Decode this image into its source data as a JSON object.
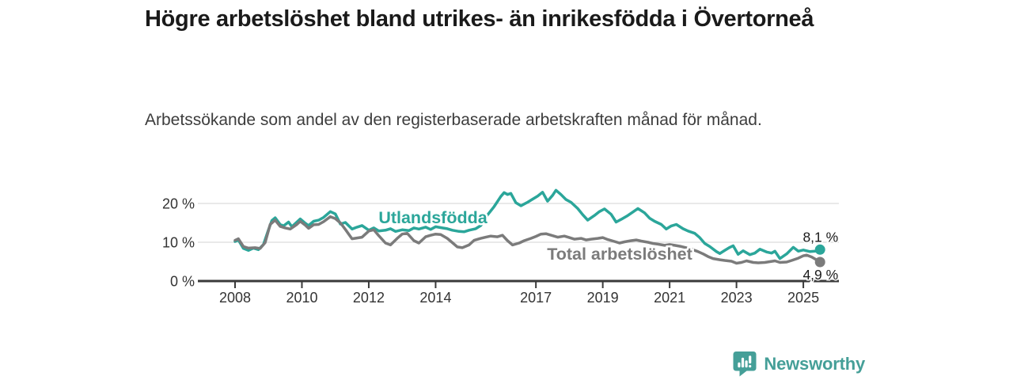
{
  "header": {
    "title": "Högre arbetslöshet bland utrikes- än inrikesfödda i Övertorneå",
    "subtitle": "Arbetssökande som andel av den registerbaserade arbetskraften månad för månad."
  },
  "footer": {
    "brand": "Newsworthy"
  },
  "colors": {
    "teal": "#2BA69A",
    "gray": "#7B7B7B",
    "axis": "#3A3A3A",
    "gridline": "#DCDCDC",
    "tick_text": "#333333",
    "value_text": "#1A1A1A",
    "logo_teal": "#459F98",
    "background": "#FFFFFF"
  },
  "chart_data": {
    "type": "line",
    "title": "Högre arbetslöshet bland utrikes- än inrikesfödda i Övertorneå",
    "subtitle": "Arbetssökande som andel av den registerbaserade arbetskraften månad för månad.",
    "unit": "%",
    "grid": "horizontal",
    "legend_position": "inline-labels",
    "y_ticks": [
      {
        "value": 0,
        "label": "0 %"
      },
      {
        "value": 10,
        "label": "10 %"
      },
      {
        "value": 20,
        "label": "20 %"
      }
    ],
    "x_ticks": [
      {
        "value": 2008,
        "label": "2008"
      },
      {
        "value": 2010,
        "label": "2010"
      },
      {
        "value": 2012,
        "label": "2012"
      },
      {
        "value": 2014,
        "label": "2014"
      },
      {
        "value": 2017,
        "label": "2017"
      },
      {
        "value": 2019,
        "label": "2019"
      },
      {
        "value": 2021,
        "label": "2021"
      },
      {
        "value": 2023,
        "label": "2023"
      },
      {
        "value": 2025,
        "label": "2025"
      }
    ],
    "x_range": [
      2006.9,
      2026.1
    ],
    "y_range": [
      0,
      25
    ],
    "series": [
      {
        "name": "Utlandsfödda",
        "color": "#2BA69A",
        "end_label": "8,1 %",
        "end_value": 8.1,
        "points": [
          [
            2008.0,
            10.2
          ],
          [
            2008.1,
            10.6
          ],
          [
            2008.25,
            8.4
          ],
          [
            2008.4,
            7.9
          ],
          [
            2008.55,
            8.5
          ],
          [
            2008.7,
            8.1
          ],
          [
            2008.85,
            9.4
          ],
          [
            2009.0,
            13.2
          ],
          [
            2009.1,
            15.6
          ],
          [
            2009.2,
            16.3
          ],
          [
            2009.35,
            14.6
          ],
          [
            2009.45,
            14.2
          ],
          [
            2009.6,
            15.2
          ],
          [
            2009.7,
            14.0
          ],
          [
            2009.85,
            15.2
          ],
          [
            2009.95,
            16.0
          ],
          [
            2010.1,
            14.9
          ],
          [
            2010.2,
            14.3
          ],
          [
            2010.35,
            15.4
          ],
          [
            2010.5,
            15.7
          ],
          [
            2010.65,
            16.4
          ],
          [
            2010.85,
            17.9
          ],
          [
            2011.0,
            17.3
          ],
          [
            2011.15,
            14.7
          ],
          [
            2011.3,
            15.1
          ],
          [
            2011.5,
            13.4
          ],
          [
            2011.65,
            13.9
          ],
          [
            2011.8,
            14.3
          ],
          [
            2012.0,
            13.1
          ],
          [
            2012.15,
            13.7
          ],
          [
            2012.3,
            12.9
          ],
          [
            2012.5,
            13.1
          ],
          [
            2012.65,
            13.5
          ],
          [
            2012.8,
            12.8
          ],
          [
            2013.0,
            13.2
          ],
          [
            2013.2,
            13.0
          ],
          [
            2013.35,
            13.7
          ],
          [
            2013.5,
            13.4
          ],
          [
            2013.7,
            13.9
          ],
          [
            2013.85,
            13.3
          ],
          [
            2014.0,
            14.0
          ],
          [
            2014.2,
            13.7
          ],
          [
            2014.35,
            13.5
          ],
          [
            2014.5,
            13.1
          ],
          [
            2014.7,
            12.8
          ],
          [
            2014.85,
            12.7
          ],
          [
            2015.0,
            13.1
          ],
          [
            2015.2,
            13.5
          ],
          [
            2015.35,
            14.3
          ],
          [
            2015.55,
            17.0
          ],
          [
            2015.75,
            19.2
          ],
          [
            2015.95,
            21.8
          ],
          [
            2016.05,
            22.8
          ],
          [
            2016.15,
            22.3
          ],
          [
            2016.25,
            22.6
          ],
          [
            2016.4,
            20.2
          ],
          [
            2016.55,
            19.4
          ],
          [
            2016.75,
            20.3
          ],
          [
            2016.9,
            21.1
          ],
          [
            2017.05,
            21.9
          ],
          [
            2017.2,
            22.9
          ],
          [
            2017.35,
            20.6
          ],
          [
            2017.5,
            22.1
          ],
          [
            2017.6,
            23.4
          ],
          [
            2017.75,
            22.3
          ],
          [
            2017.9,
            21.0
          ],
          [
            2018.05,
            20.3
          ],
          [
            2018.25,
            18.7
          ],
          [
            2018.4,
            17.1
          ],
          [
            2018.55,
            15.7
          ],
          [
            2018.75,
            16.9
          ],
          [
            2018.9,
            17.9
          ],
          [
            2019.05,
            18.6
          ],
          [
            2019.25,
            17.2
          ],
          [
            2019.4,
            15.2
          ],
          [
            2019.55,
            15.9
          ],
          [
            2019.75,
            16.9
          ],
          [
            2019.9,
            17.8
          ],
          [
            2020.05,
            18.7
          ],
          [
            2020.25,
            17.6
          ],
          [
            2020.4,
            16.2
          ],
          [
            2020.55,
            15.4
          ],
          [
            2020.75,
            14.6
          ],
          [
            2020.9,
            13.4
          ],
          [
            2021.05,
            14.2
          ],
          [
            2021.2,
            14.6
          ],
          [
            2021.4,
            13.5
          ],
          [
            2021.55,
            12.9
          ],
          [
            2021.75,
            12.3
          ],
          [
            2021.9,
            11.2
          ],
          [
            2022.05,
            9.7
          ],
          [
            2022.2,
            8.9
          ],
          [
            2022.4,
            7.6
          ],
          [
            2022.5,
            7.1
          ],
          [
            2022.65,
            7.9
          ],
          [
            2022.8,
            8.7
          ],
          [
            2022.9,
            9.1
          ],
          [
            2023.05,
            6.9
          ],
          [
            2023.2,
            7.8
          ],
          [
            2023.4,
            6.8
          ],
          [
            2023.55,
            7.2
          ],
          [
            2023.7,
            8.2
          ],
          [
            2023.9,
            7.5
          ],
          [
            2024.05,
            7.2
          ],
          [
            2024.15,
            7.7
          ],
          [
            2024.3,
            5.8
          ],
          [
            2024.5,
            7.0
          ],
          [
            2024.7,
            8.7
          ],
          [
            2024.85,
            7.7
          ],
          [
            2025.0,
            8.0
          ],
          [
            2025.2,
            7.6
          ],
          [
            2025.35,
            7.7
          ],
          [
            2025.5,
            8.1
          ]
        ]
      },
      {
        "name": "Total arbetslöshet",
        "color": "#7B7B7B",
        "end_label": "4,9 %",
        "end_value": 4.9,
        "points": [
          [
            2008.0,
            10.5
          ],
          [
            2008.1,
            10.9
          ],
          [
            2008.25,
            8.9
          ],
          [
            2008.4,
            8.5
          ],
          [
            2008.6,
            8.6
          ],
          [
            2008.75,
            8.4
          ],
          [
            2008.9,
            9.9
          ],
          [
            2009.05,
            14.6
          ],
          [
            2009.2,
            15.7
          ],
          [
            2009.35,
            14.1
          ],
          [
            2009.5,
            13.7
          ],
          [
            2009.65,
            13.4
          ],
          [
            2009.85,
            14.6
          ],
          [
            2009.95,
            15.4
          ],
          [
            2010.1,
            14.4
          ],
          [
            2010.2,
            13.6
          ],
          [
            2010.35,
            14.5
          ],
          [
            2010.5,
            14.6
          ],
          [
            2010.65,
            15.3
          ],
          [
            2010.85,
            16.6
          ],
          [
            2011.0,
            16.1
          ],
          [
            2011.15,
            15.0
          ],
          [
            2011.3,
            13.3
          ],
          [
            2011.5,
            10.9
          ],
          [
            2011.65,
            11.1
          ],
          [
            2011.8,
            11.3
          ],
          [
            2012.0,
            12.9
          ],
          [
            2012.15,
            13.2
          ],
          [
            2012.3,
            11.7
          ],
          [
            2012.5,
            9.8
          ],
          [
            2012.65,
            9.3
          ],
          [
            2012.85,
            11.0
          ],
          [
            2013.0,
            12.1
          ],
          [
            2013.15,
            12.3
          ],
          [
            2013.35,
            10.4
          ],
          [
            2013.5,
            9.8
          ],
          [
            2013.7,
            11.4
          ],
          [
            2013.85,
            11.8
          ],
          [
            2014.0,
            12.1
          ],
          [
            2014.15,
            12.0
          ],
          [
            2014.35,
            11.0
          ],
          [
            2014.5,
            9.9
          ],
          [
            2014.65,
            8.8
          ],
          [
            2014.8,
            8.6
          ],
          [
            2015.0,
            9.3
          ],
          [
            2015.15,
            10.5
          ],
          [
            2015.35,
            11.0
          ],
          [
            2015.5,
            11.3
          ],
          [
            2015.65,
            11.6
          ],
          [
            2015.85,
            11.4
          ],
          [
            2016.0,
            11.8
          ],
          [
            2016.15,
            10.4
          ],
          [
            2016.3,
            9.3
          ],
          [
            2016.5,
            9.8
          ],
          [
            2016.65,
            10.4
          ],
          [
            2016.85,
            11.0
          ],
          [
            2017.0,
            11.5
          ],
          [
            2017.15,
            12.1
          ],
          [
            2017.3,
            12.2
          ],
          [
            2017.5,
            11.7
          ],
          [
            2017.65,
            11.3
          ],
          [
            2017.85,
            11.6
          ],
          [
            2018.0,
            11.2
          ],
          [
            2018.15,
            10.8
          ],
          [
            2018.35,
            11.0
          ],
          [
            2018.5,
            10.6
          ],
          [
            2018.65,
            10.8
          ],
          [
            2018.85,
            11.0
          ],
          [
            2019.0,
            11.2
          ],
          [
            2019.15,
            10.7
          ],
          [
            2019.35,
            10.2
          ],
          [
            2019.5,
            9.8
          ],
          [
            2019.65,
            10.1
          ],
          [
            2019.85,
            10.4
          ],
          [
            2020.0,
            10.6
          ],
          [
            2020.15,
            10.3
          ],
          [
            2020.35,
            10.0
          ],
          [
            2020.5,
            9.7
          ],
          [
            2020.65,
            9.5
          ],
          [
            2020.85,
            9.2
          ],
          [
            2021.0,
            9.4
          ],
          [
            2021.15,
            9.2
          ],
          [
            2021.35,
            8.9
          ],
          [
            2021.5,
            8.6
          ],
          [
            2021.65,
            8.2
          ],
          [
            2021.85,
            7.6
          ],
          [
            2022.0,
            7.0
          ],
          [
            2022.15,
            6.3
          ],
          [
            2022.3,
            5.8
          ],
          [
            2022.5,
            5.5
          ],
          [
            2022.65,
            5.3
          ],
          [
            2022.85,
            5.1
          ],
          [
            2023.0,
            4.6
          ],
          [
            2023.15,
            4.8
          ],
          [
            2023.3,
            5.2
          ],
          [
            2023.5,
            4.8
          ],
          [
            2023.65,
            4.7
          ],
          [
            2023.85,
            4.8
          ],
          [
            2024.0,
            5.0
          ],
          [
            2024.15,
            5.2
          ],
          [
            2024.3,
            4.8
          ],
          [
            2024.5,
            4.9
          ],
          [
            2024.65,
            5.3
          ],
          [
            2024.85,
            5.9
          ],
          [
            2025.0,
            6.5
          ],
          [
            2025.1,
            6.7
          ],
          [
            2025.25,
            6.2
          ],
          [
            2025.35,
            5.7
          ],
          [
            2025.5,
            4.9
          ]
        ]
      }
    ]
  }
}
